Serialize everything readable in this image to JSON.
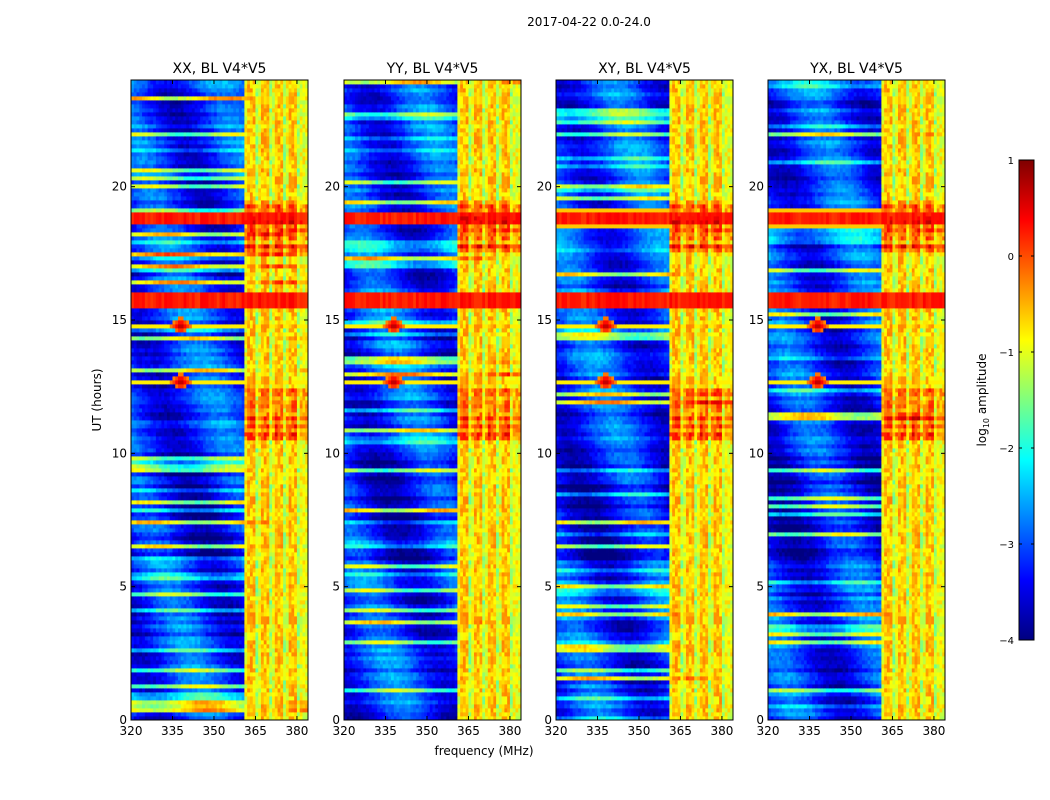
{
  "figure": {
    "suptitle": "2017-04-22 0.0-24.0",
    "xlabel": "frequency (MHz)",
    "ylabel": "UT (hours)"
  },
  "colorbar": {
    "label": "log10 amplitude",
    "label_base": "log",
    "label_sub": "10",
    "label_rest": " amplitude",
    "range": [
      -4,
      1
    ],
    "ticks": [
      1,
      0,
      -1,
      -2,
      -3,
      -4
    ],
    "tick_labels": [
      "1",
      "0",
      "−1",
      "−2",
      "−3",
      "−4"
    ],
    "colormap": "jet",
    "colors": [
      "#00007f",
      "#0000ff",
      "#007fff",
      "#00ffff",
      "#7fff7f",
      "#ffff00",
      "#ff7f00",
      "#ff0000",
      "#7f0000"
    ]
  },
  "chart_data": {
    "type": "heatmap",
    "x_range": [
      320,
      384
    ],
    "y_range": [
      0,
      24
    ],
    "x_ticks": [
      320,
      335,
      350,
      365,
      380
    ],
    "x_tick_labels": [
      "320",
      "335",
      "350",
      "365",
      "380"
    ],
    "y_ticks": [
      0,
      5,
      10,
      15,
      20
    ],
    "y_tick_labels": [
      "0",
      "5",
      "10",
      "15",
      "20"
    ],
    "panels": [
      {
        "title": "XX, BL V4*V5",
        "pol": "XX"
      },
      {
        "title": "YY, BL V4*V5",
        "pol": "YY"
      },
      {
        "title": "XY, BL V4*V5",
        "pol": "XY"
      },
      {
        "title": "YX, BL V4*V5",
        "pol": "YX"
      }
    ],
    "features": {
      "rfi_band_MHz": [
        361,
        384
      ],
      "strong_channels_MHz": [
        364,
        369,
        374,
        379
      ],
      "strong_time_blocks_UT": [
        [
          10.5,
          12.5
        ],
        [
          17.5,
          19.5
        ]
      ],
      "broadband_bands_UT": [
        [
          15.5,
          16.1
        ],
        [
          18.6,
          19.1
        ]
      ],
      "point_features": [
        {
          "freq_MHz": 338,
          "ut": 14.8
        },
        {
          "freq_MHz": 338,
          "ut": 12.7
        }
      ]
    }
  }
}
